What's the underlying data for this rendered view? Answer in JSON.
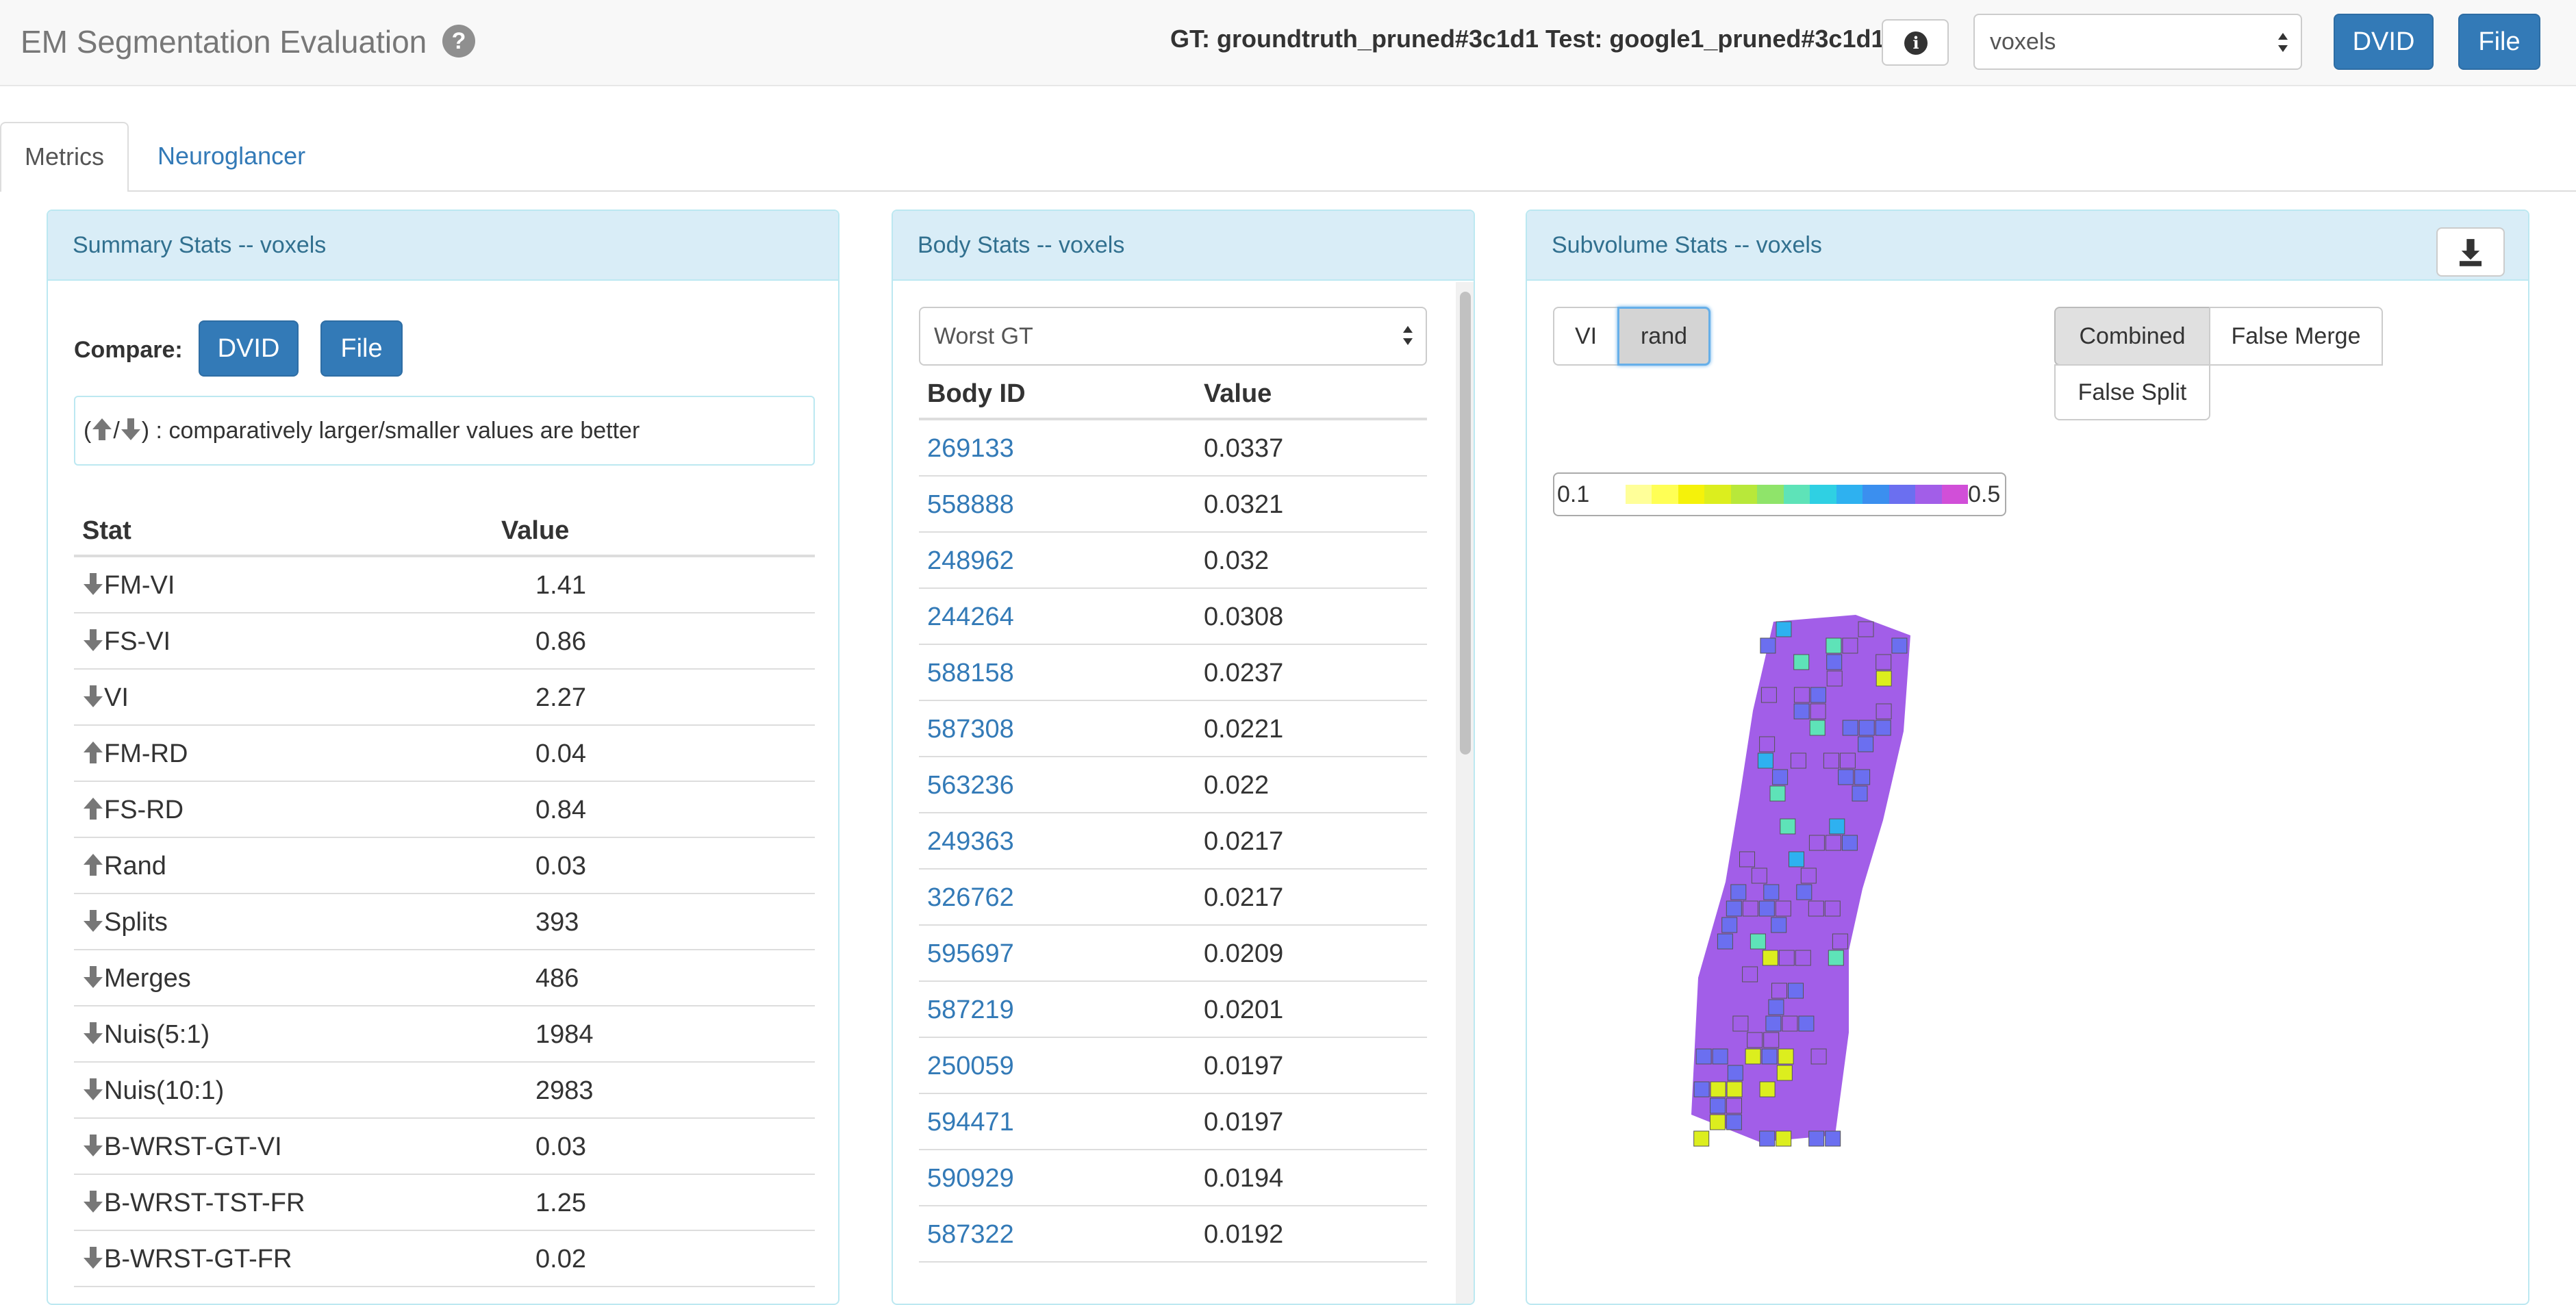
{
  "header": {
    "title": "EM Segmentation Evaluation",
    "help_icon": "question-circle-icon",
    "dataset_label": "GT: groundtruth_pruned#3c1d1 Test: google1_pruned#3c1d1",
    "info_icon": "info-circle-icon",
    "metric_select": {
      "selected": "voxels"
    },
    "dvid_label": "DVID",
    "file_label": "File"
  },
  "tabs": [
    {
      "label": "Metrics",
      "active": true
    },
    {
      "label": "Neuroglancer",
      "active": false
    }
  ],
  "summary": {
    "title": "Summary Stats -- voxels",
    "compare_label": "Compare:",
    "dvid_label": "DVID",
    "file_label": "File",
    "legend_prefix": "(",
    "legend_sep": "/",
    "legend_suffix": ") : comparatively larger/smaller values are better",
    "columns": [
      "Stat",
      "Value"
    ],
    "rows": [
      {
        "dir": "down",
        "stat": "FM-VI",
        "value": "1.41"
      },
      {
        "dir": "down",
        "stat": "FS-VI",
        "value": "0.86"
      },
      {
        "dir": "down",
        "stat": "VI",
        "value": "2.27"
      },
      {
        "dir": "up",
        "stat": "FM-RD",
        "value": "0.04"
      },
      {
        "dir": "up",
        "stat": "FS-RD",
        "value": "0.84"
      },
      {
        "dir": "up",
        "stat": "Rand",
        "value": "0.03"
      },
      {
        "dir": "down",
        "stat": "Splits",
        "value": "393"
      },
      {
        "dir": "down",
        "stat": "Merges",
        "value": "486"
      },
      {
        "dir": "down",
        "stat": "Nuis(5:1)",
        "value": "1984"
      },
      {
        "dir": "down",
        "stat": "Nuis(10:1)",
        "value": "2983"
      },
      {
        "dir": "down",
        "stat": "B-WRST-GT-VI",
        "value": "0.03"
      },
      {
        "dir": "down",
        "stat": "B-WRST-TST-FR",
        "value": "1.25"
      },
      {
        "dir": "down",
        "stat": "B-WRST-GT-FR",
        "value": "0.02"
      }
    ]
  },
  "body": {
    "title": "Body Stats -- voxels",
    "select": {
      "selected": "Worst GT"
    },
    "columns": [
      "Body ID",
      "Value"
    ],
    "rows": [
      {
        "id": "269133",
        "value": "0.0337"
      },
      {
        "id": "558888",
        "value": "0.0321"
      },
      {
        "id": "248962",
        "value": "0.032"
      },
      {
        "id": "244264",
        "value": "0.0308"
      },
      {
        "id": "588158",
        "value": "0.0237"
      },
      {
        "id": "587308",
        "value": "0.0221"
      },
      {
        "id": "563236",
        "value": "0.022"
      },
      {
        "id": "249363",
        "value": "0.0217"
      },
      {
        "id": "326762",
        "value": "0.0217"
      },
      {
        "id": "595697",
        "value": "0.0209"
      },
      {
        "id": "587219",
        "value": "0.0201"
      },
      {
        "id": "250059",
        "value": "0.0197"
      },
      {
        "id": "594471",
        "value": "0.0197"
      },
      {
        "id": "590929",
        "value": "0.0194"
      },
      {
        "id": "587322",
        "value": "0.0192"
      }
    ]
  },
  "subvolume": {
    "title": "Subvolume Stats -- voxels",
    "download_icon": "download-icon",
    "metric_toggle": [
      {
        "label": "VI",
        "active": false
      },
      {
        "label": "rand",
        "active": true
      }
    ],
    "type_toggle": [
      {
        "label": "Combined",
        "active": true
      },
      {
        "label": "False Merge",
        "active": false
      },
      {
        "label": "False Split",
        "active": false
      }
    ],
    "colorbar": {
      "min": "0.1",
      "max": "0.5",
      "colors": [
        "#ffff99",
        "#ffff55",
        "#f5f20a",
        "#dcee1e",
        "#b8e83a",
        "#8fe46a",
        "#5ee3b8",
        "#2fd0e3",
        "#2eb1f0",
        "#3b8fef",
        "#6b6ff0",
        "#a25ee8",
        "#d14fd8"
      ]
    }
  }
}
